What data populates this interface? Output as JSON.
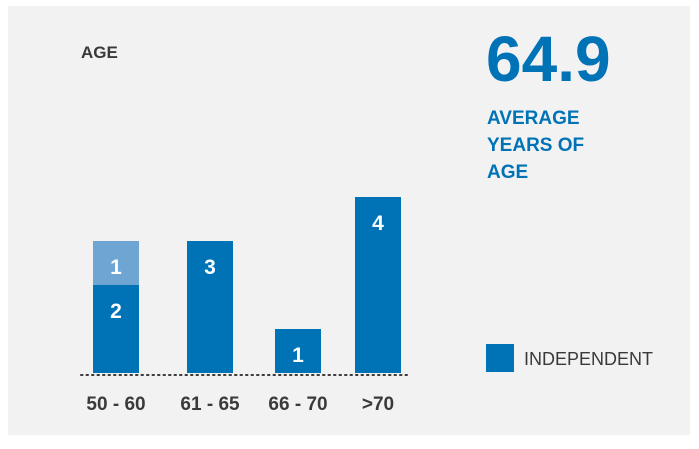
{
  "colors": {
    "card_background": "#f2f2f2",
    "primary": "#0073b7",
    "secondary": "#6fa5d2",
    "text": "#3a3a3a"
  },
  "stat": {
    "value": "64.9",
    "label_lines": [
      "AVERAGE",
      "YEARS OF",
      "AGE"
    ]
  },
  "chart_data": {
    "type": "bar",
    "stacked": true,
    "title": "AGE",
    "categories": [
      "50 - 60",
      "61 - 65",
      "66 - 70",
      ">70"
    ],
    "series": [
      {
        "name": "INDEPENDENT",
        "values": [
          2,
          3,
          1,
          4
        ],
        "color": "#0073b7"
      },
      {
        "values": [
          1,
          0,
          0,
          0
        ],
        "color": "#6fa5d2"
      }
    ],
    "data_labels": [
      [
        2,
        3,
        1,
        4
      ],
      [
        1,
        null,
        null,
        null
      ]
    ],
    "ylim": [
      0,
      4
    ],
    "grid": false,
    "legend": {
      "position": "right",
      "entries": [
        "INDEPENDENT"
      ]
    }
  }
}
